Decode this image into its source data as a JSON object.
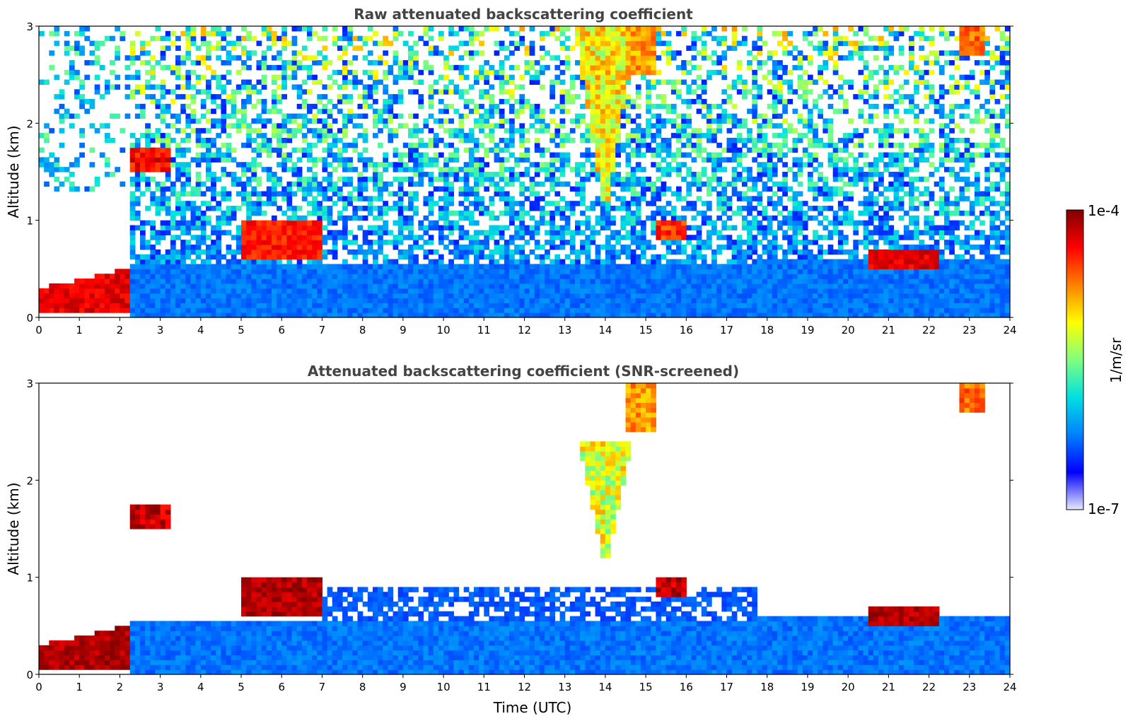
{
  "chart_data": [
    {
      "type": "heatmap",
      "title": "Raw attenuated backscattering coefficient",
      "xlabel": "",
      "ylabel": "Altitude (km)",
      "xlim": [
        0,
        24
      ],
      "ylim": [
        0,
        3
      ],
      "x_ticks": [
        "0",
        "1",
        "2",
        "3",
        "4",
        "5",
        "6",
        "7",
        "8",
        "9",
        "10",
        "11",
        "12",
        "13",
        "14",
        "15",
        "16",
        "17",
        "18",
        "19",
        "20",
        "21",
        "22",
        "23",
        "24"
      ],
      "y_ticks": [
        "0",
        "1",
        "2",
        "3"
      ],
      "features": [
        {
          "kind": "layer",
          "t0": 0.0,
          "t1": 2.2,
          "z0": 0.05,
          "z1": 0.3,
          "z1_end": 0.5,
          "level": 0.95
        },
        {
          "kind": "blob",
          "t0": 2.2,
          "t1": 3.3,
          "z0": 1.5,
          "z1": 1.75,
          "level": 0.95
        },
        {
          "kind": "plume",
          "tc": 14.0,
          "zc": 1.2,
          "top": 3.0,
          "halfwidth": 0.7,
          "level": 0.75
        },
        {
          "kind": "blob",
          "t0": 14.5,
          "t1": 15.2,
          "z0": 2.5,
          "z1": 3.0,
          "level": 0.8
        },
        {
          "kind": "blob",
          "t0": 22.8,
          "t1": 23.4,
          "z0": 2.7,
          "z1": 3.0,
          "level": 0.85
        },
        {
          "kind": "layer",
          "t0": 20.5,
          "t1": 22.2,
          "z0": 0.5,
          "z1": 0.7,
          "level": 0.95
        },
        {
          "kind": "layer",
          "t0": 5.0,
          "t1": 7.0,
          "z0": 0.6,
          "z1": 1.0,
          "level": 0.9
        },
        {
          "kind": "blob",
          "t0": 15.2,
          "t1": 16.0,
          "z0": 0.8,
          "z1": 1.0,
          "level": 0.9
        }
      ]
    },
    {
      "type": "heatmap",
      "title": "Attenuated backscattering coefficient (SNR-screened)",
      "xlabel": "Time (UTC)",
      "ylabel": "Altitude (km)",
      "xlim": [
        0,
        24
      ],
      "ylim": [
        0,
        3
      ],
      "x_ticks": [
        "0",
        "1",
        "2",
        "3",
        "4",
        "5",
        "6",
        "7",
        "8",
        "9",
        "10",
        "11",
        "12",
        "13",
        "14",
        "15",
        "16",
        "17",
        "18",
        "19",
        "20",
        "21",
        "22",
        "23",
        "24"
      ],
      "y_ticks": [
        "0",
        "1",
        "2",
        "3"
      ],
      "features": [
        {
          "kind": "layer",
          "t0": 0.0,
          "t1": 2.2,
          "z0": 0.05,
          "z1": 0.3,
          "z1_end": 0.5,
          "level": 1.0
        },
        {
          "kind": "blob",
          "t0": 2.2,
          "t1": 3.3,
          "z0": 1.5,
          "z1": 1.75,
          "level": 1.0
        },
        {
          "kind": "plume",
          "tc": 14.0,
          "zc": 1.2,
          "top": 2.4,
          "halfwidth": 0.6,
          "level": 0.72
        },
        {
          "kind": "blob",
          "t0": 14.5,
          "t1": 15.2,
          "z0": 2.5,
          "z1": 3.0,
          "level": 0.8
        },
        {
          "kind": "blob",
          "t0": 22.8,
          "t1": 23.4,
          "z0": 2.7,
          "z1": 3.0,
          "level": 0.85
        },
        {
          "kind": "layer",
          "t0": 20.5,
          "t1": 22.2,
          "z0": 0.5,
          "z1": 0.7,
          "level": 1.0
        },
        {
          "kind": "layer",
          "t0": 5.0,
          "t1": 7.0,
          "z0": 0.6,
          "z1": 1.0,
          "level": 1.0
        },
        {
          "kind": "blob",
          "t0": 15.2,
          "t1": 16.0,
          "z0": 0.8,
          "z1": 1.0,
          "level": 1.0
        }
      ]
    }
  ],
  "colorbar": {
    "label": "1/m/sr",
    "max_label": "1e-4",
    "min_label": "1e-7",
    "colors": [
      "#e8e8ff",
      "#0000ff",
      "#0080ff",
      "#00e0e0",
      "#80ff80",
      "#ffff00",
      "#ff8000",
      "#ff0000",
      "#800000"
    ]
  }
}
